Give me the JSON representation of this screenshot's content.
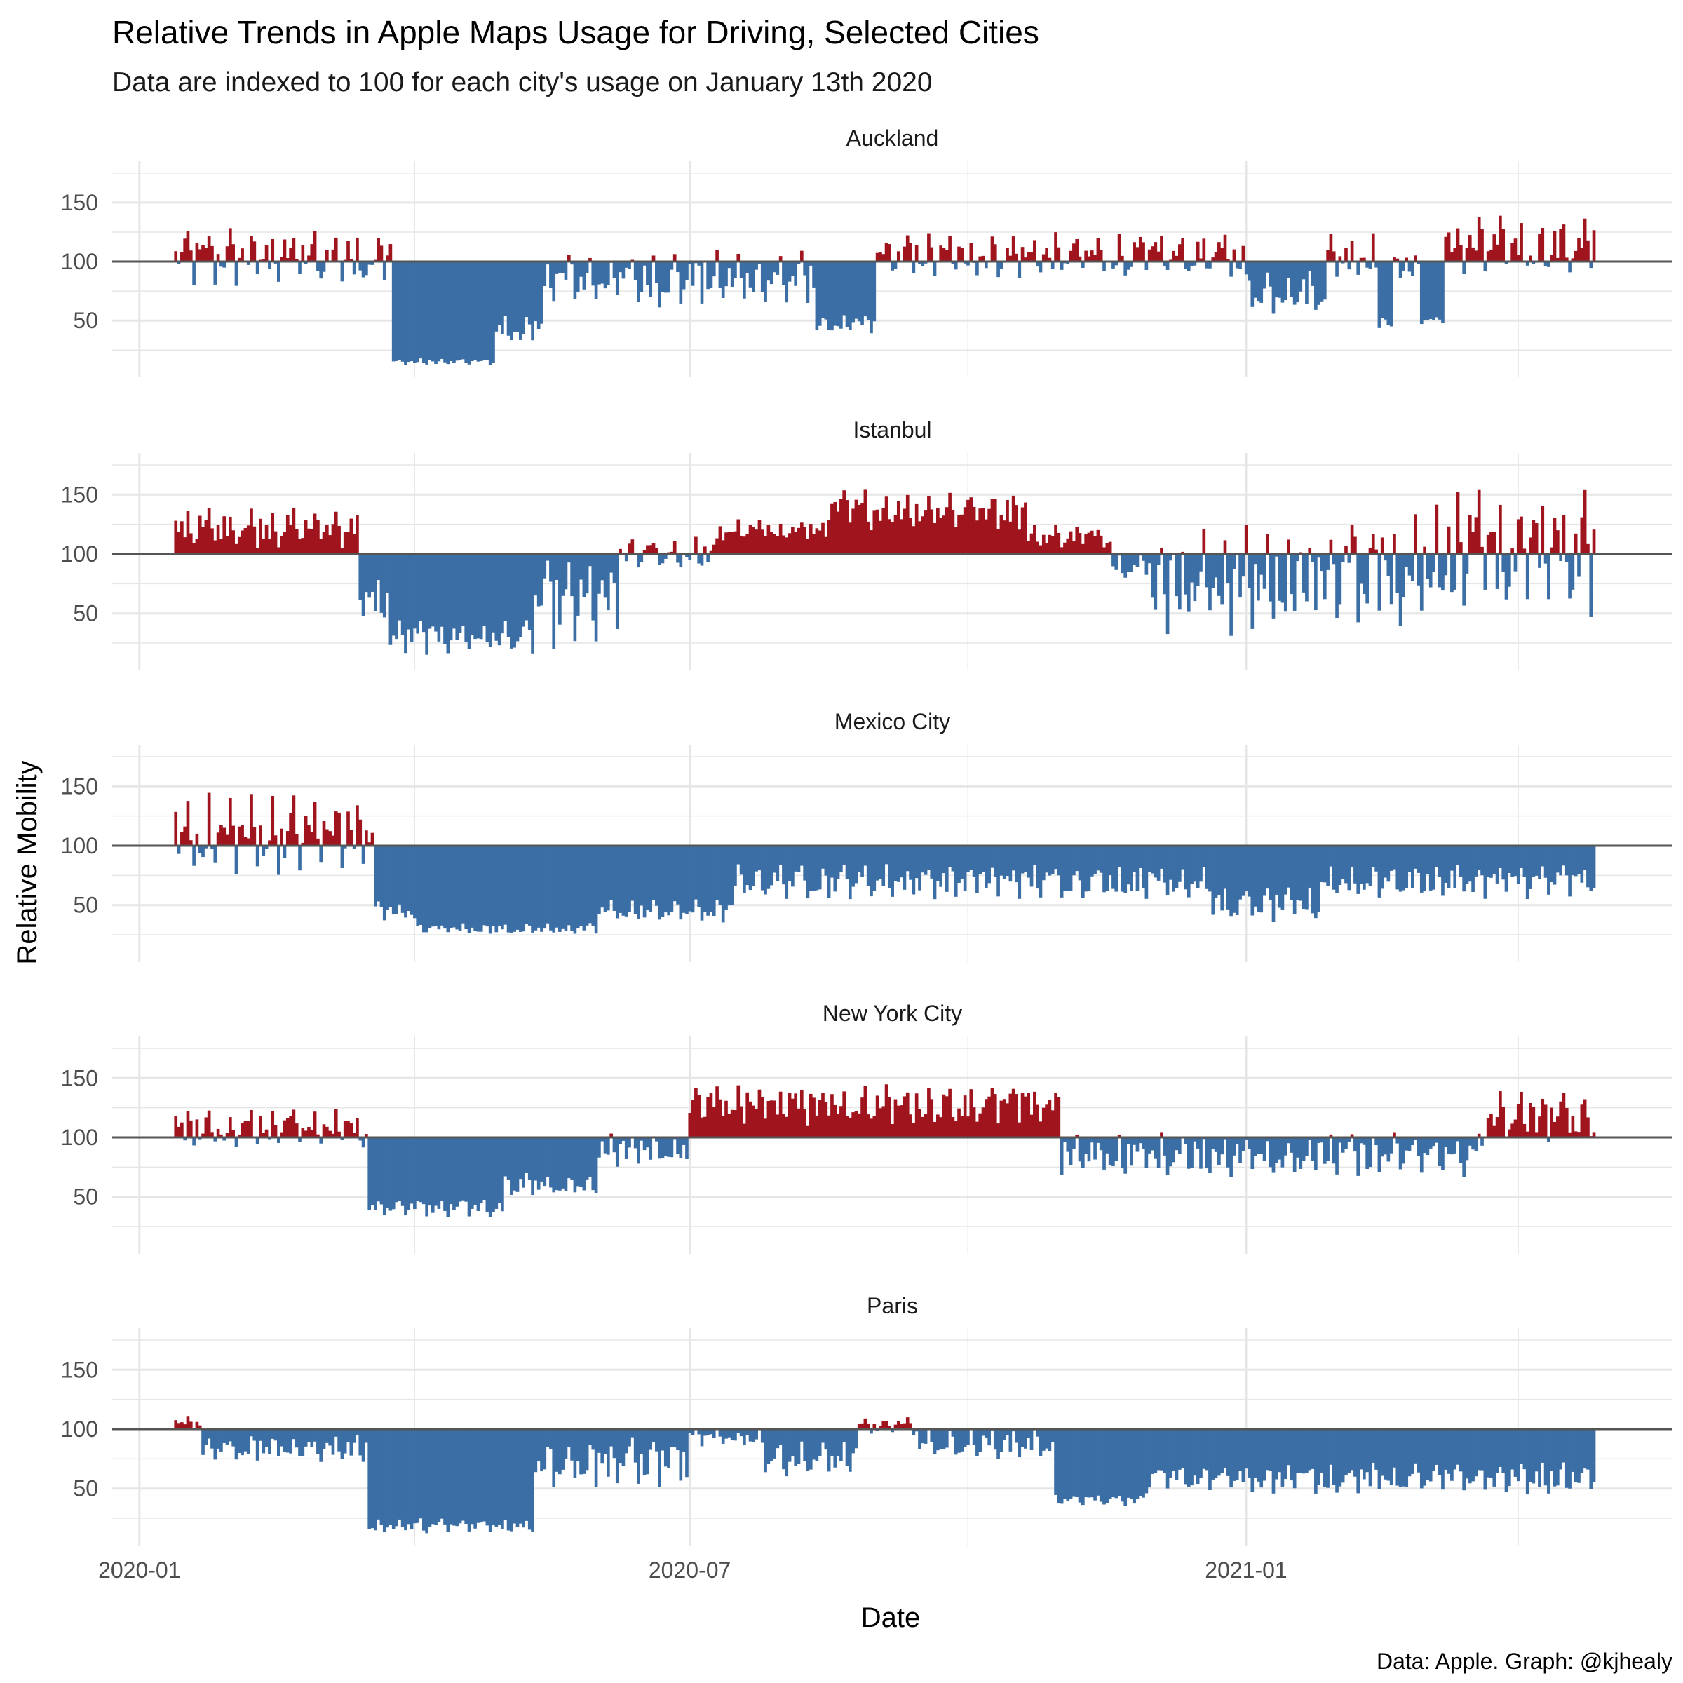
{
  "chart_data": {
    "type": "bar",
    "title": "Relative Trends in Apple Maps Usage for Driving, Selected Cities",
    "subtitle": "Data are indexed to 100 for each city's usage on January 13th 2020",
    "xlabel": "Date",
    "ylabel": "Relative Mobility",
    "caption": "Data: Apple. Graph: @kjhealy",
    "baseline": 100,
    "ylim": [
      2,
      185
    ],
    "y_ticks": [
      50,
      100,
      150
    ],
    "x_range": [
      "2019-12-23",
      "2021-05-22"
    ],
    "x_ticks": [
      {
        "date": "2020-01-01",
        "label": "2020-01"
      },
      {
        "date": "2020-07-01",
        "label": "2020-07"
      },
      {
        "date": "2021-01-01",
        "label": "2021-01"
      }
    ],
    "x_minor_ticks": [
      "2020-04-01",
      "2020-10-01",
      "2021-04-01"
    ],
    "start_date": "2020-01-13",
    "end_date": "2021-04-26",
    "grid": true,
    "colors": {
      "above": "#A0141E",
      "below": "#3A6EA5",
      "baseline": "#555555",
      "grid": "#e6e6e6"
    },
    "series": [
      {
        "name": "Auckland",
        "segments": [
          {
            "from": "2020-01-13",
            "to": "2020-03-24",
            "low": 78,
            "high": 130
          },
          {
            "from": "2020-03-25",
            "to": "2020-04-27",
            "low": 12,
            "high": 18
          },
          {
            "from": "2020-04-28",
            "to": "2020-05-13",
            "low": 28,
            "high": 55
          },
          {
            "from": "2020-05-14",
            "to": "2020-08-11",
            "low": 60,
            "high": 110
          },
          {
            "from": "2020-08-12",
            "to": "2020-08-31",
            "low": 38,
            "high": 55
          },
          {
            "from": "2020-09-01",
            "to": "2020-12-31",
            "low": 85,
            "high": 125
          },
          {
            "from": "2021-01-01",
            "to": "2021-01-27",
            "low": 55,
            "high": 95
          },
          {
            "from": "2021-01-28",
            "to": "2021-02-13",
            "low": 85,
            "high": 125
          },
          {
            "from": "2021-02-14",
            "to": "2021-02-18",
            "low": 42,
            "high": 55
          },
          {
            "from": "2021-02-19",
            "to": "2021-02-27",
            "low": 80,
            "high": 110
          },
          {
            "from": "2021-02-28",
            "to": "2021-03-07",
            "low": 46,
            "high": 55
          },
          {
            "from": "2021-03-08",
            "to": "2021-04-26",
            "low": 85,
            "high": 140
          }
        ]
      },
      {
        "name": "Istanbul",
        "segments": [
          {
            "from": "2020-01-13",
            "to": "2020-03-13",
            "low": 105,
            "high": 140
          },
          {
            "from": "2020-03-14",
            "to": "2020-03-23",
            "low": 40,
            "high": 80
          },
          {
            "from": "2020-03-24",
            "to": "2020-05-10",
            "low": 15,
            "high": 45
          },
          {
            "from": "2020-05-11",
            "to": "2020-06-07",
            "low": 20,
            "high": 95
          },
          {
            "from": "2020-06-08",
            "to": "2020-07-10",
            "low": 85,
            "high": 115
          },
          {
            "from": "2020-07-11",
            "to": "2020-08-15",
            "low": 110,
            "high": 130
          },
          {
            "from": "2020-08-16",
            "to": "2020-10-20",
            "low": 120,
            "high": 155
          },
          {
            "from": "2020-10-21",
            "to": "2020-11-17",
            "low": 105,
            "high": 125
          },
          {
            "from": "2020-11-18",
            "to": "2020-11-30",
            "low": 80,
            "high": 100
          },
          {
            "from": "2020-12-01",
            "to": "2021-01-31",
            "low": 30,
            "high": 125
          },
          {
            "from": "2021-02-01",
            "to": "2021-02-28",
            "low": 35,
            "high": 140
          },
          {
            "from": "2021-03-01",
            "to": "2021-04-26",
            "low": 45,
            "high": 155
          }
        ]
      },
      {
        "name": "Mexico City",
        "segments": [
          {
            "from": "2020-01-13",
            "to": "2020-03-18",
            "low": 75,
            "high": 145
          },
          {
            "from": "2020-03-19",
            "to": "2020-04-01",
            "low": 35,
            "high": 55
          },
          {
            "from": "2020-04-02",
            "to": "2020-05-31",
            "low": 25,
            "high": 35
          },
          {
            "from": "2020-06-01",
            "to": "2020-07-15",
            "low": 35,
            "high": 55
          },
          {
            "from": "2020-07-16",
            "to": "2020-12-20",
            "low": 55,
            "high": 85
          },
          {
            "from": "2020-12-21",
            "to": "2021-01-25",
            "low": 35,
            "high": 65
          },
          {
            "from": "2021-01-26",
            "to": "2021-04-26",
            "low": 55,
            "high": 85
          }
        ]
      },
      {
        "name": "New York City",
        "segments": [
          {
            "from": "2020-01-13",
            "to": "2020-03-16",
            "low": 90,
            "high": 125
          },
          {
            "from": "2020-03-17",
            "to": "2020-04-30",
            "low": 32,
            "high": 50
          },
          {
            "from": "2020-05-01",
            "to": "2020-05-31",
            "low": 50,
            "high": 70
          },
          {
            "from": "2020-06-01",
            "to": "2020-06-30",
            "low": 75,
            "high": 105
          },
          {
            "from": "2020-07-01",
            "to": "2020-10-31",
            "low": 110,
            "high": 145
          },
          {
            "from": "2020-11-01",
            "to": "2021-03-20",
            "low": 65,
            "high": 105
          },
          {
            "from": "2021-03-21",
            "to": "2021-04-26",
            "low": 95,
            "high": 140
          }
        ]
      },
      {
        "name": "Paris",
        "segments": [
          {
            "from": "2020-01-13",
            "to": "2020-01-21",
            "low": 100,
            "high": 112
          },
          {
            "from": "2020-01-22",
            "to": "2020-03-16",
            "low": 72,
            "high": 95
          },
          {
            "from": "2020-03-17",
            "to": "2020-05-10",
            "low": 12,
            "high": 25
          },
          {
            "from": "2020-05-11",
            "to": "2020-06-30",
            "low": 50,
            "high": 95
          },
          {
            "from": "2020-07-01",
            "to": "2020-07-25",
            "low": 85,
            "high": 100
          },
          {
            "from": "2020-07-26",
            "to": "2020-08-25",
            "low": 60,
            "high": 90
          },
          {
            "from": "2020-08-26",
            "to": "2020-09-14",
            "low": 95,
            "high": 110
          },
          {
            "from": "2020-09-15",
            "to": "2020-10-29",
            "low": 75,
            "high": 100
          },
          {
            "from": "2020-10-30",
            "to": "2020-11-28",
            "low": 35,
            "high": 45
          },
          {
            "from": "2020-11-29",
            "to": "2021-04-26",
            "low": 45,
            "high": 72
          }
        ]
      }
    ]
  }
}
